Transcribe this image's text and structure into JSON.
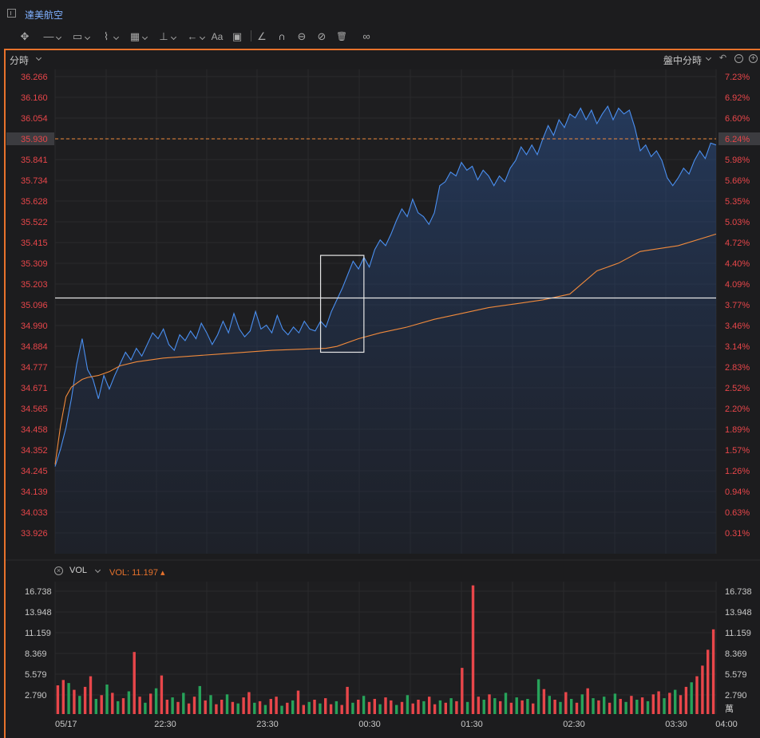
{
  "window": {
    "title": "達美航空"
  },
  "toolbar": {
    "tools": [
      {
        "name": "move-icon",
        "glyph": "✥"
      },
      {
        "name": "line-icon",
        "glyph": "—"
      },
      {
        "name": "rect-icon",
        "glyph": "▭"
      },
      {
        "name": "path-icon",
        "glyph": "⌇"
      },
      {
        "name": "fib-icon",
        "glyph": "▦"
      },
      {
        "name": "vertical-line-icon",
        "glyph": "⊥"
      },
      {
        "name": "arrow-icon",
        "glyph": "←"
      },
      {
        "name": "text-icon",
        "glyph": "Aa"
      },
      {
        "name": "comment-icon",
        "glyph": "▣"
      },
      {
        "name": "measure-icon",
        "glyph": "∠"
      },
      {
        "name": "magnet-icon",
        "glyph": "∩"
      },
      {
        "name": "visibility-icon",
        "glyph": "⊖"
      },
      {
        "name": "hide-icon",
        "glyph": "⊘"
      },
      {
        "name": "trash-icon",
        "glyph": "🗑"
      },
      {
        "name": "link-icon",
        "glyph": "∞"
      }
    ]
  },
  "controls": {
    "period_label": "分時",
    "session_label": "盤中分時",
    "undo_glyph": "↶",
    "zoom_out_glyph": "−",
    "zoom_in_glyph": "+"
  },
  "volume_panel": {
    "indicator": "VOL",
    "value_text": "VOL: 11.197 ▴",
    "close_glyph": "×",
    "unit_label": "萬"
  },
  "colors": {
    "price_line": "#4a8ff0",
    "avg_line": "#f08a3c",
    "up": "#e8464a",
    "down": "#27a35a",
    "accent": "#e8722c"
  },
  "chart_data": [
    {
      "type": "line",
      "title": "",
      "y_ticks_left": [
        "36.266",
        "36.160",
        "36.054",
        "35.930",
        "35.841",
        "35.734",
        "35.628",
        "35.522",
        "35.415",
        "35.309",
        "35.203",
        "35.096",
        "34.990",
        "34.884",
        "34.777",
        "34.671",
        "34.565",
        "34.458",
        "34.352",
        "34.245",
        "34.139",
        "34.033",
        "33.926"
      ],
      "y_ticks_right": [
        "7.23%",
        "6.92%",
        "6.60%",
        "6.24%",
        "5.98%",
        "5.66%",
        "5.35%",
        "5.03%",
        "4.72%",
        "4.40%",
        "4.09%",
        "3.77%",
        "3.46%",
        "3.14%",
        "2.83%",
        "2.52%",
        "2.20%",
        "1.89%",
        "1.57%",
        "1.26%",
        "0.94%",
        "0.63%",
        "0.31%"
      ],
      "current_price_label": "35.930",
      "current_pct_label": "6.24%",
      "x_ticks": [
        "05/17",
        "22:30",
        "23:30",
        "00:30",
        "01:30",
        "02:30",
        "03:30",
        "04:00"
      ],
      "ylim": [
        33.82,
        36.32
      ],
      "series": [
        {
          "values": [
            [
              0,
              34.27
            ],
            [
              1,
              34.36
            ],
            [
              2,
              34.47
            ],
            [
              3,
              34.62
            ],
            [
              4,
              34.8
            ],
            [
              5,
              34.93
            ],
            [
              6,
              34.77
            ],
            [
              7,
              34.72
            ],
            [
              8,
              34.62
            ],
            [
              9,
              34.74
            ],
            [
              10,
              34.67
            ],
            [
              11,
              34.74
            ],
            [
              12,
              34.8
            ],
            [
              13,
              34.86
            ],
            [
              14,
              34.82
            ],
            [
              15,
              34.88
            ],
            [
              16,
              34.84
            ],
            [
              17,
              34.9
            ],
            [
              18,
              34.96
            ],
            [
              19,
              34.93
            ],
            [
              20,
              34.98
            ],
            [
              21,
              34.9
            ],
            [
              22,
              34.87
            ],
            [
              23,
              34.95
            ],
            [
              24,
              34.92
            ],
            [
              25,
              34.97
            ],
            [
              26,
              34.93
            ],
            [
              27,
              35.01
            ],
            [
              28,
              34.96
            ],
            [
              29,
              34.9
            ],
            [
              30,
              34.95
            ],
            [
              31,
              35.02
            ],
            [
              32,
              34.96
            ],
            [
              33,
              35.06
            ],
            [
              34,
              34.98
            ],
            [
              35,
              34.94
            ],
            [
              36,
              34.97
            ],
            [
              37,
              35.07
            ],
            [
              38,
              34.98
            ],
            [
              39,
              35.0
            ],
            [
              40,
              34.96
            ],
            [
              41,
              35.05
            ],
            [
              42,
              34.98
            ],
            [
              43,
              34.95
            ],
            [
              44,
              34.99
            ],
            [
              45,
              34.96
            ],
            [
              46,
              35.02
            ],
            [
              47,
              34.98
            ],
            [
              48,
              34.97
            ],
            [
              49,
              35.02
            ],
            [
              50,
              34.99
            ],
            [
              51,
              35.07
            ],
            [
              52,
              35.13
            ],
            [
              53,
              35.19
            ],
            [
              54,
              35.26
            ],
            [
              55,
              35.33
            ],
            [
              56,
              35.29
            ],
            [
              57,
              35.35
            ],
            [
              58,
              35.3
            ],
            [
              59,
              35.39
            ],
            [
              60,
              35.44
            ],
            [
              61,
              35.41
            ],
            [
              62,
              35.47
            ],
            [
              63,
              35.54
            ],
            [
              64,
              35.6
            ],
            [
              65,
              35.56
            ],
            [
              66,
              35.65
            ],
            [
              67,
              35.58
            ],
            [
              68,
              35.56
            ],
            [
              69,
              35.52
            ],
            [
              70,
              35.58
            ],
            [
              71,
              35.72
            ],
            [
              72,
              35.74
            ],
            [
              73,
              35.79
            ],
            [
              74,
              35.77
            ],
            [
              75,
              35.84
            ],
            [
              76,
              35.8
            ],
            [
              77,
              35.82
            ],
            [
              78,
              35.75
            ],
            [
              79,
              35.8
            ],
            [
              80,
              35.77
            ],
            [
              81,
              35.72
            ],
            [
              82,
              35.77
            ],
            [
              83,
              35.74
            ],
            [
              84,
              35.81
            ],
            [
              85,
              35.85
            ],
            [
              86,
              35.92
            ],
            [
              87,
              35.88
            ],
            [
              88,
              35.93
            ],
            [
              89,
              35.88
            ],
            [
              90,
              35.96
            ],
            [
              91,
              36.03
            ],
            [
              92,
              35.98
            ],
            [
              93,
              36.06
            ],
            [
              94,
              36.02
            ],
            [
              95,
              36.09
            ],
            [
              96,
              36.07
            ],
            [
              97,
              36.12
            ],
            [
              98,
              36.06
            ],
            [
              99,
              36.11
            ],
            [
              100,
              36.04
            ],
            [
              101,
              36.09
            ],
            [
              102,
              36.13
            ],
            [
              103,
              36.06
            ],
            [
              104,
              36.12
            ],
            [
              105,
              36.09
            ],
            [
              106,
              36.11
            ],
            [
              107,
              36.02
            ],
            [
              108,
              35.9
            ],
            [
              109,
              35.93
            ],
            [
              110,
              35.87
            ],
            [
              111,
              35.9
            ],
            [
              112,
              35.85
            ],
            [
              113,
              35.76
            ],
            [
              114,
              35.72
            ],
            [
              115,
              35.76
            ],
            [
              116,
              35.81
            ],
            [
              117,
              35.78
            ],
            [
              118,
              35.85
            ],
            [
              119,
              35.9
            ],
            [
              120,
              35.86
            ],
            [
              121,
              35.94
            ],
            [
              122,
              35.93
            ]
          ]
        },
        {
          "values": [
            [
              0,
              34.28
            ],
            [
              1,
              34.48
            ],
            [
              2,
              34.63
            ],
            [
              3,
              34.68
            ],
            [
              4,
              34.7
            ],
            [
              5,
              34.72
            ],
            [
              6,
              34.73
            ],
            [
              8,
              34.74
            ],
            [
              10,
              34.76
            ],
            [
              12,
              34.79
            ],
            [
              15,
              34.81
            ],
            [
              20,
              34.83
            ],
            [
              30,
              34.85
            ],
            [
              40,
              34.87
            ],
            [
              50,
              34.88
            ],
            [
              52,
              34.89
            ],
            [
              56,
              34.93
            ],
            [
              60,
              34.96
            ],
            [
              65,
              34.99
            ],
            [
              70,
              35.03
            ],
            [
              75,
              35.06
            ],
            [
              80,
              35.09
            ],
            [
              85,
              35.11
            ],
            [
              90,
              35.13
            ],
            [
              95,
              35.16
            ],
            [
              100,
              35.28
            ],
            [
              104,
              35.32
            ],
            [
              108,
              35.38
            ],
            [
              115,
              35.41
            ],
            [
              122,
              35.47
            ]
          ]
        }
      ],
      "horizontal_line": 35.14,
      "selection_box": {
        "x_from": 49,
        "x_to": 57,
        "y_from": 34.86,
        "y_to": 35.36
      }
    },
    {
      "type": "bar",
      "y_ticks": [
        "16.738",
        "13.948",
        "11.159",
        "8.369",
        "5.579",
        "2.790"
      ],
      "ylim": [
        0,
        17.5
      ],
      "values": [
        [
          3.8,
          1
        ],
        [
          4.5,
          1
        ],
        [
          4.1,
          0
        ],
        [
          3.2,
          1
        ],
        [
          2.4,
          0
        ],
        [
          3.6,
          1
        ],
        [
          5.0,
          1
        ],
        [
          2.0,
          0
        ],
        [
          2.5,
          1
        ],
        [
          3.9,
          0
        ],
        [
          2.8,
          1
        ],
        [
          1.7,
          0
        ],
        [
          2.1,
          1
        ],
        [
          3.0,
          0
        ],
        [
          8.2,
          1
        ],
        [
          2.3,
          1
        ],
        [
          1.5,
          0
        ],
        [
          2.7,
          1
        ],
        [
          3.4,
          0
        ],
        [
          5.1,
          1
        ],
        [
          1.9,
          1
        ],
        [
          2.2,
          0
        ],
        [
          1.6,
          1
        ],
        [
          2.8,
          0
        ],
        [
          1.4,
          1
        ],
        [
          2.3,
          1
        ],
        [
          3.7,
          0
        ],
        [
          1.8,
          1
        ],
        [
          2.5,
          0
        ],
        [
          1.3,
          1
        ],
        [
          1.9,
          1
        ],
        [
          2.6,
          0
        ],
        [
          1.6,
          1
        ],
        [
          1.4,
          0
        ],
        [
          2.2,
          1
        ],
        [
          2.9,
          1
        ],
        [
          1.5,
          0
        ],
        [
          1.7,
          1
        ],
        [
          1.2,
          0
        ],
        [
          2.0,
          1
        ],
        [
          2.3,
          1
        ],
        [
          1.1,
          0
        ],
        [
          1.5,
          1
        ],
        [
          1.8,
          0
        ],
        [
          3.1,
          1
        ],
        [
          1.2,
          1
        ],
        [
          1.6,
          0
        ],
        [
          1.9,
          1
        ],
        [
          1.4,
          0
        ],
        [
          2.1,
          1
        ],
        [
          1.3,
          1
        ],
        [
          1.7,
          0
        ],
        [
          1.2,
          1
        ],
        [
          3.6,
          1
        ],
        [
          1.5,
          0
        ],
        [
          1.9,
          1
        ],
        [
          2.4,
          0
        ],
        [
          1.6,
          1
        ],
        [
          2.0,
          1
        ],
        [
          1.3,
          0
        ],
        [
          2.2,
          1
        ],
        [
          1.8,
          1
        ],
        [
          1.2,
          0
        ],
        [
          1.6,
          1
        ],
        [
          2.5,
          0
        ],
        [
          1.4,
          1
        ],
        [
          1.9,
          1
        ],
        [
          1.7,
          0
        ],
        [
          2.3,
          1
        ],
        [
          1.3,
          1
        ],
        [
          1.8,
          0
        ],
        [
          1.5,
          1
        ],
        [
          2.1,
          0
        ],
        [
          1.7,
          1
        ],
        [
          6.1,
          1
        ],
        [
          1.6,
          0
        ],
        [
          17.0,
          1
        ],
        [
          2.3,
          1
        ],
        [
          1.9,
          0
        ],
        [
          2.6,
          1
        ],
        [
          2.1,
          0
        ],
        [
          1.7,
          1
        ],
        [
          2.8,
          0
        ],
        [
          1.5,
          1
        ],
        [
          2.2,
          0
        ],
        [
          1.8,
          1
        ],
        [
          2.0,
          0
        ],
        [
          1.4,
          1
        ],
        [
          4.6,
          0
        ],
        [
          3.3,
          1
        ],
        [
          2.4,
          0
        ],
        [
          1.9,
          1
        ],
        [
          1.6,
          0
        ],
        [
          2.9,
          1
        ],
        [
          2.0,
          0
        ],
        [
          1.5,
          1
        ],
        [
          2.6,
          0
        ],
        [
          3.4,
          1
        ],
        [
          2.1,
          0
        ],
        [
          1.8,
          1
        ],
        [
          2.3,
          0
        ],
        [
          1.5,
          1
        ],
        [
          2.7,
          0
        ],
        [
          2.0,
          1
        ],
        [
          1.6,
          0
        ],
        [
          2.4,
          1
        ],
        [
          1.9,
          0
        ],
        [
          2.2,
          1
        ],
        [
          1.7,
          0
        ],
        [
          2.6,
          1
        ],
        [
          3.0,
          1
        ],
        [
          2.1,
          0
        ],
        [
          2.8,
          1
        ],
        [
          3.2,
          0
        ],
        [
          2.5,
          1
        ],
        [
          3.6,
          1
        ],
        [
          4.2,
          0
        ],
        [
          5.0,
          1
        ],
        [
          6.4,
          1
        ],
        [
          8.5,
          1
        ],
        [
          11.2,
          1
        ]
      ],
      "note_values": "each entry: [volume in 萬, 1=up/red 0=down/green]"
    }
  ]
}
